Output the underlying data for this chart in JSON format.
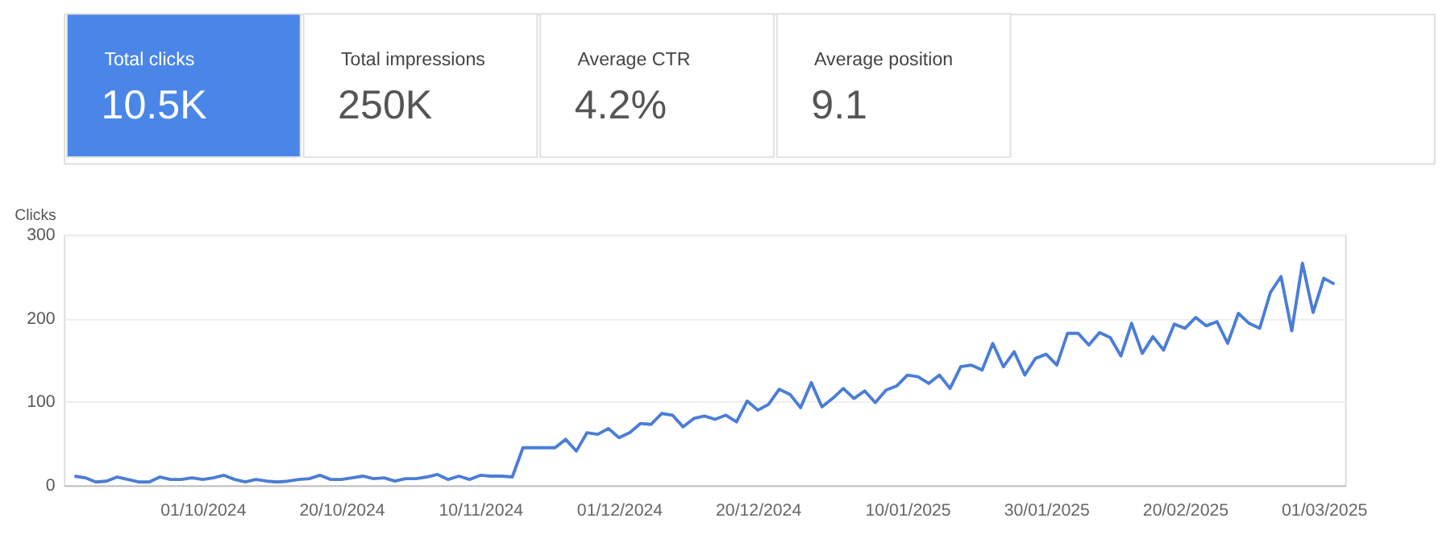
{
  "chart_data": {
    "type": "line",
    "ylabel": "Clicks",
    "annotations": [
      "Total clicks",
      "10.5K",
      "Total impressions",
      "250K",
      "Average CTR",
      "4.2%",
      "Average position",
      "9.1"
    ],
    "categories": [
      null,
      null,
      null,
      null,
      null,
      null,
      null,
      null,
      null,
      null,
      null,
      null,
      "01/10/2024",
      null,
      null,
      null,
      null,
      null,
      null,
      null,
      null,
      null,
      null,
      null,
      null,
      "20/10/2024",
      null,
      null,
      null,
      null,
      null,
      null,
      null,
      null,
      null,
      null,
      null,
      null,
      "10/11/2024",
      null,
      null,
      null,
      null,
      null,
      null,
      null,
      null,
      null,
      null,
      null,
      null,
      "01/12/2024",
      null,
      null,
      null,
      null,
      null,
      null,
      null,
      null,
      null,
      null,
      null,
      null,
      "20/12/2024",
      null,
      null,
      null,
      null,
      null,
      null,
      null,
      null,
      null,
      null,
      null,
      null,
      null,
      "10/01/2025",
      null,
      null,
      null,
      null,
      null,
      null,
      null,
      null,
      null,
      null,
      null,
      null,
      "30/01/2025",
      null,
      null,
      null,
      null,
      null,
      null,
      null,
      null,
      null,
      null,
      null,
      null,
      "20/02/2025",
      null,
      null,
      null,
      null,
      null,
      null,
      null,
      null,
      null,
      null,
      null,
      null,
      "01/03/2025",
      null
    ],
    "series": [
      {
        "color": "#4a7dd6",
        "values": [
          11,
          9,
          4,
          5,
          10,
          7,
          4,
          4,
          10,
          7,
          7,
          9,
          7,
          9,
          12,
          7,
          4,
          7,
          5,
          4,
          5,
          7,
          8,
          12,
          7,
          7,
          9,
          11,
          8,
          9,
          5,
          8,
          8,
          10,
          13,
          7,
          11,
          7,
          12,
          11,
          11,
          10,
          45,
          45,
          45,
          45,
          55,
          41,
          63,
          61,
          68,
          57,
          63,
          74,
          73,
          86,
          84,
          70,
          80,
          83,
          79,
          84,
          76,
          101,
          90,
          97,
          115,
          109,
          93,
          123,
          94,
          104,
          116,
          104,
          113,
          99,
          114,
          119,
          132,
          130,
          122,
          132,
          116,
          142,
          144,
          138,
          170,
          142,
          160,
          132,
          152,
          157,
          144,
          182,
          182,
          168,
          183,
          177,
          155,
          194,
          158,
          178,
          162,
          193,
          188,
          201,
          191,
          196,
          170,
          206,
          194,
          188,
          231,
          250,
          185,
          266,
          207,
          248,
          241
        ]
      }
    ],
    "ylim": [
      0,
      300
    ],
    "yticks": [
      0,
      100,
      200,
      300
    ],
    "grid": "y",
    "marker": "none",
    "line_style": "solid"
  }
}
